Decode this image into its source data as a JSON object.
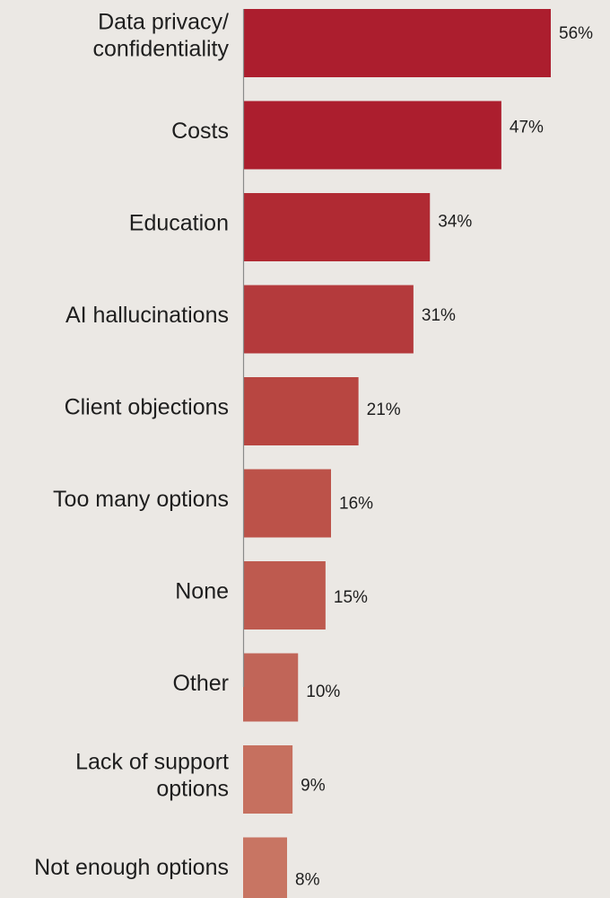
{
  "chart_data": {
    "type": "bar",
    "orientation": "horizontal",
    "title": "",
    "xlabel": "",
    "ylabel": "",
    "xlim": [
      0,
      60
    ],
    "grid": false,
    "legend": "none",
    "categories": [
      [
        "Data privacy/",
        "confidentiality"
      ],
      [
        "Costs"
      ],
      [
        "Education"
      ],
      [
        "AI hallucinations"
      ],
      [
        "Client objections"
      ],
      [
        "Too many options"
      ],
      [
        "None"
      ],
      [
        "Other"
      ],
      [
        "Lack of support",
        "options"
      ],
      [
        "Not enough options"
      ]
    ],
    "values": [
      56,
      47,
      34,
      31,
      21,
      16,
      15,
      10,
      9,
      8
    ],
    "value_labels": [
      "56%",
      "47%",
      "34%",
      "31%",
      "21%",
      "16%",
      "15%",
      "10%",
      "9%",
      "8%"
    ],
    "colors": [
      "#ac1e2e",
      "#ac1e2e",
      "#b02a33",
      "#b43a3c",
      "#b84641",
      "#bc5249",
      "#be5a4f",
      "#c16558",
      "#c6705f",
      "#c87563"
    ],
    "axis_color": "#8a8a8a",
    "label_color": "#1e1e1e"
  }
}
